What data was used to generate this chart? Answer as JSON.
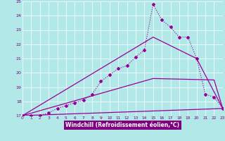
{
  "xlabel": "Windchill (Refroidissement éolien,°C)",
  "bg_color": "#b2e8e8",
  "plot_bg_color": "#b2e8e8",
  "xlabel_bg_color": "#800080",
  "xlabel_text_color": "#ffffff",
  "line_color": "#990099",
  "grid_color": "#ffffff",
  "tick_label_color": "#800080",
  "xlim": [
    0,
    23
  ],
  "ylim": [
    17,
    25
  ],
  "yticks": [
    17,
    18,
    19,
    20,
    21,
    22,
    23,
    24,
    25
  ],
  "xticks": [
    0,
    1,
    2,
    3,
    4,
    5,
    6,
    7,
    8,
    9,
    10,
    11,
    12,
    13,
    14,
    15,
    16,
    17,
    18,
    19,
    20,
    21,
    22,
    23
  ],
  "line1_x": [
    0,
    1,
    2,
    3,
    4,
    5,
    6,
    7,
    8,
    9,
    10,
    11,
    12,
    13,
    14,
    15,
    16,
    17,
    18,
    19,
    20,
    21,
    22,
    23
  ],
  "line1_y": [
    17.0,
    17.0,
    17.0,
    17.2,
    17.5,
    17.7,
    17.9,
    18.1,
    18.5,
    19.4,
    19.85,
    20.3,
    20.5,
    21.1,
    21.6,
    24.8,
    23.7,
    23.2,
    22.5,
    22.5,
    21.0,
    18.5,
    18.3,
    17.5
  ],
  "line2_x": [
    0,
    15,
    20,
    23
  ],
  "line2_y": [
    17.0,
    22.5,
    21.0,
    17.5
  ],
  "line3_x": [
    0,
    15,
    22,
    23
  ],
  "line3_y": [
    17.0,
    19.6,
    19.5,
    17.5
  ],
  "line4_x": [
    0,
    23
  ],
  "line4_y": [
    17.0,
    17.5
  ]
}
